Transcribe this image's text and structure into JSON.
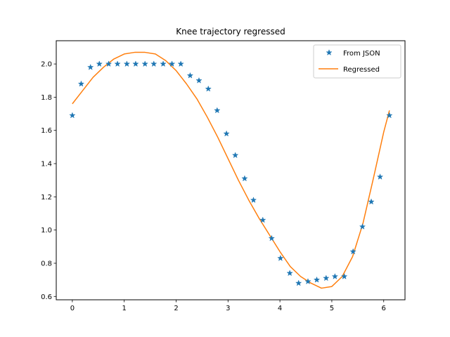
{
  "chart_data": {
    "type": "line",
    "title": "Knee trajectory regressed",
    "xlabel": "",
    "ylabel": "",
    "xlim": [
      -0.31,
      6.41
    ],
    "ylim": [
      0.58,
      2.14
    ],
    "xticks": [
      0,
      1,
      2,
      3,
      4,
      5,
      6
    ],
    "yticks": [
      0.6,
      0.8,
      1.0,
      1.2,
      1.4,
      1.6,
      1.8,
      2.0
    ],
    "ytick_labels": [
      "0.6",
      "0.8",
      "1.0",
      "1.2",
      "1.4",
      "1.6",
      "1.8",
      "2.0"
    ],
    "grid": false,
    "legend_position": "top-right",
    "series": [
      {
        "name": "From JSON",
        "type": "scatter",
        "marker": "star",
        "color": "#1f77b4",
        "x": [
          0.0,
          0.17,
          0.35,
          0.52,
          0.7,
          0.87,
          1.05,
          1.22,
          1.4,
          1.57,
          1.75,
          1.92,
          2.09,
          2.27,
          2.44,
          2.62,
          2.79,
          2.97,
          3.14,
          3.32,
          3.49,
          3.67,
          3.84,
          4.01,
          4.19,
          4.36,
          4.54,
          4.71,
          4.89,
          5.06,
          5.24,
          5.41,
          5.59,
          5.76,
          5.93,
          6.11
        ],
        "y": [
          1.69,
          1.88,
          1.98,
          2.0,
          2.0,
          2.0,
          2.0,
          2.0,
          2.0,
          2.0,
          2.0,
          2.0,
          2.0,
          1.93,
          1.9,
          1.85,
          1.72,
          1.58,
          1.45,
          1.31,
          1.18,
          1.06,
          0.95,
          0.83,
          0.74,
          0.68,
          0.69,
          0.7,
          0.71,
          0.72,
          0.72,
          0.87,
          1.02,
          1.17,
          1.32,
          1.69
        ]
      },
      {
        "name": "Regressed",
        "type": "line",
        "color": "#ff7f0e",
        "x": [
          0.0,
          0.2,
          0.4,
          0.6,
          0.8,
          1.0,
          1.2,
          1.4,
          1.6,
          1.8,
          2.0,
          2.2,
          2.4,
          2.6,
          2.8,
          3.0,
          3.2,
          3.4,
          3.6,
          3.8,
          4.0,
          4.2,
          4.4,
          4.6,
          4.8,
          5.0,
          5.2,
          5.4,
          5.6,
          5.8,
          6.0,
          6.11
        ],
        "y": [
          1.76,
          1.84,
          1.92,
          1.98,
          2.03,
          2.06,
          2.07,
          2.07,
          2.06,
          2.02,
          1.96,
          1.88,
          1.79,
          1.68,
          1.56,
          1.43,
          1.3,
          1.18,
          1.07,
          0.97,
          0.87,
          0.78,
          0.72,
          0.68,
          0.65,
          0.66,
          0.72,
          0.84,
          1.04,
          1.31,
          1.59,
          1.72
        ]
      }
    ]
  }
}
